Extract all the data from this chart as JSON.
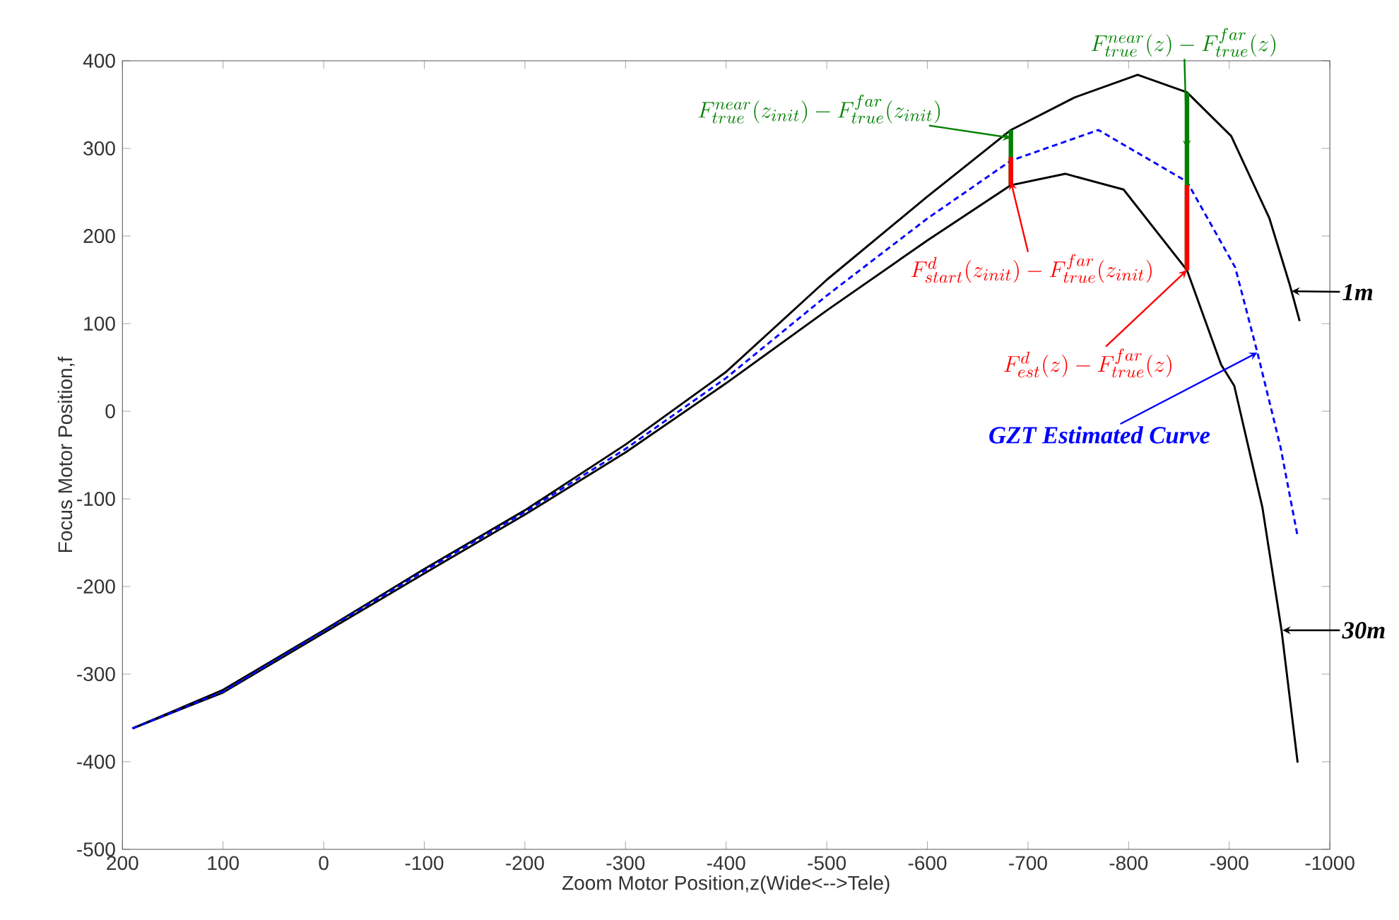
{
  "chart_data": {
    "type": "line",
    "xlabel": "Zoom Motor Position,z(Wide<-->Tele)",
    "ylabel": "Focus Motor Position,f",
    "xlim": [
      200,
      -1000
    ],
    "ylim": [
      -500,
      400
    ],
    "xticks": [
      200,
      100,
      0,
      -100,
      -200,
      -300,
      -400,
      -500,
      -600,
      -700,
      -800,
      -900,
      -1000
    ],
    "yticks": [
      -500,
      -400,
      -300,
      -200,
      -100,
      0,
      100,
      200,
      300,
      400
    ],
    "series": [
      {
        "color": "#000000",
        "line_style": "solid",
        "x": [
          190,
          100,
          0,
          -100,
          -200,
          -300,
          -400,
          -500,
          -600,
          -683,
          -746,
          -809,
          -858,
          -902,
          -940,
          -960,
          -970
        ],
        "values": [
          -362,
          -318,
          -250,
          -180,
          -113,
          -38,
          45,
          150,
          245,
          321,
          358,
          384,
          364,
          314,
          220,
          145,
          103
        ]
      },
      {
        "color": "#000000",
        "line_style": "solid",
        "x": [
          190,
          100,
          0,
          -100,
          -200,
          -300,
          -400,
          -500,
          -600,
          -683,
          -737,
          -795,
          -858,
          -892,
          -905,
          -933,
          -952,
          -968
        ],
        "values": [
          -362,
          -321,
          -253,
          -185,
          -118,
          -47,
          32,
          115,
          195,
          258,
          271,
          253,
          161,
          53,
          29,
          -110,
          -250,
          -401
        ]
      },
      {
        "color": "#0000ff",
        "line_style": "dashed",
        "x": [
          190,
          100,
          0,
          -100,
          -200,
          -300,
          -400,
          -500,
          -600,
          -683,
          -770,
          -858,
          -906,
          -928,
          -951,
          -968
        ],
        "values": [
          -362,
          -320,
          -251,
          -182,
          -115,
          -43,
          38,
          132,
          220,
          286,
          321,
          262,
          164,
          67,
          -41,
          -143
        ]
      },
      {
        "color": "#008000",
        "line_style": "solid",
        "x": [
          -683,
          -683
        ],
        "values": [
          321,
          258
        ]
      },
      {
        "color": "#008000",
        "line_style": "solid",
        "x": [
          -858,
          -858
        ],
        "values": [
          364,
          161
        ]
      },
      {
        "color": "#ff0000",
        "line_style": "solid",
        "x": [
          -683,
          -683
        ],
        "values": [
          290,
          258
        ]
      },
      {
        "color": "#ff0000",
        "line_style": "solid",
        "x": [
          -858,
          -858
        ],
        "values": [
          258,
          161
        ]
      }
    ],
    "annotations": [
      {
        "text": "F^{near}_{true}(z_{init}) - F^{far}_{true}(z_{init})",
        "x": -683,
        "y": 312
      },
      {
        "text": "F^{near}_{true}(z) - F^{far}_{true}(z)",
        "x": -858,
        "y": 300
      },
      {
        "text": "F^{d}_{start}(z_{init}) - F^{far}_{true}(z_{init})",
        "x": -683,
        "y": 262
      },
      {
        "text": "F^{d}_{est}(z) - F^{far}_{true}(z)",
        "x": -858,
        "y": 161
      },
      {
        "text": "GZT Estimated Curve",
        "x": -928,
        "y": 67
      },
      {
        "text": "1m",
        "x": -962,
        "y": 137
      },
      {
        "text": "30m",
        "x": -953,
        "y": -250
      }
    ]
  }
}
